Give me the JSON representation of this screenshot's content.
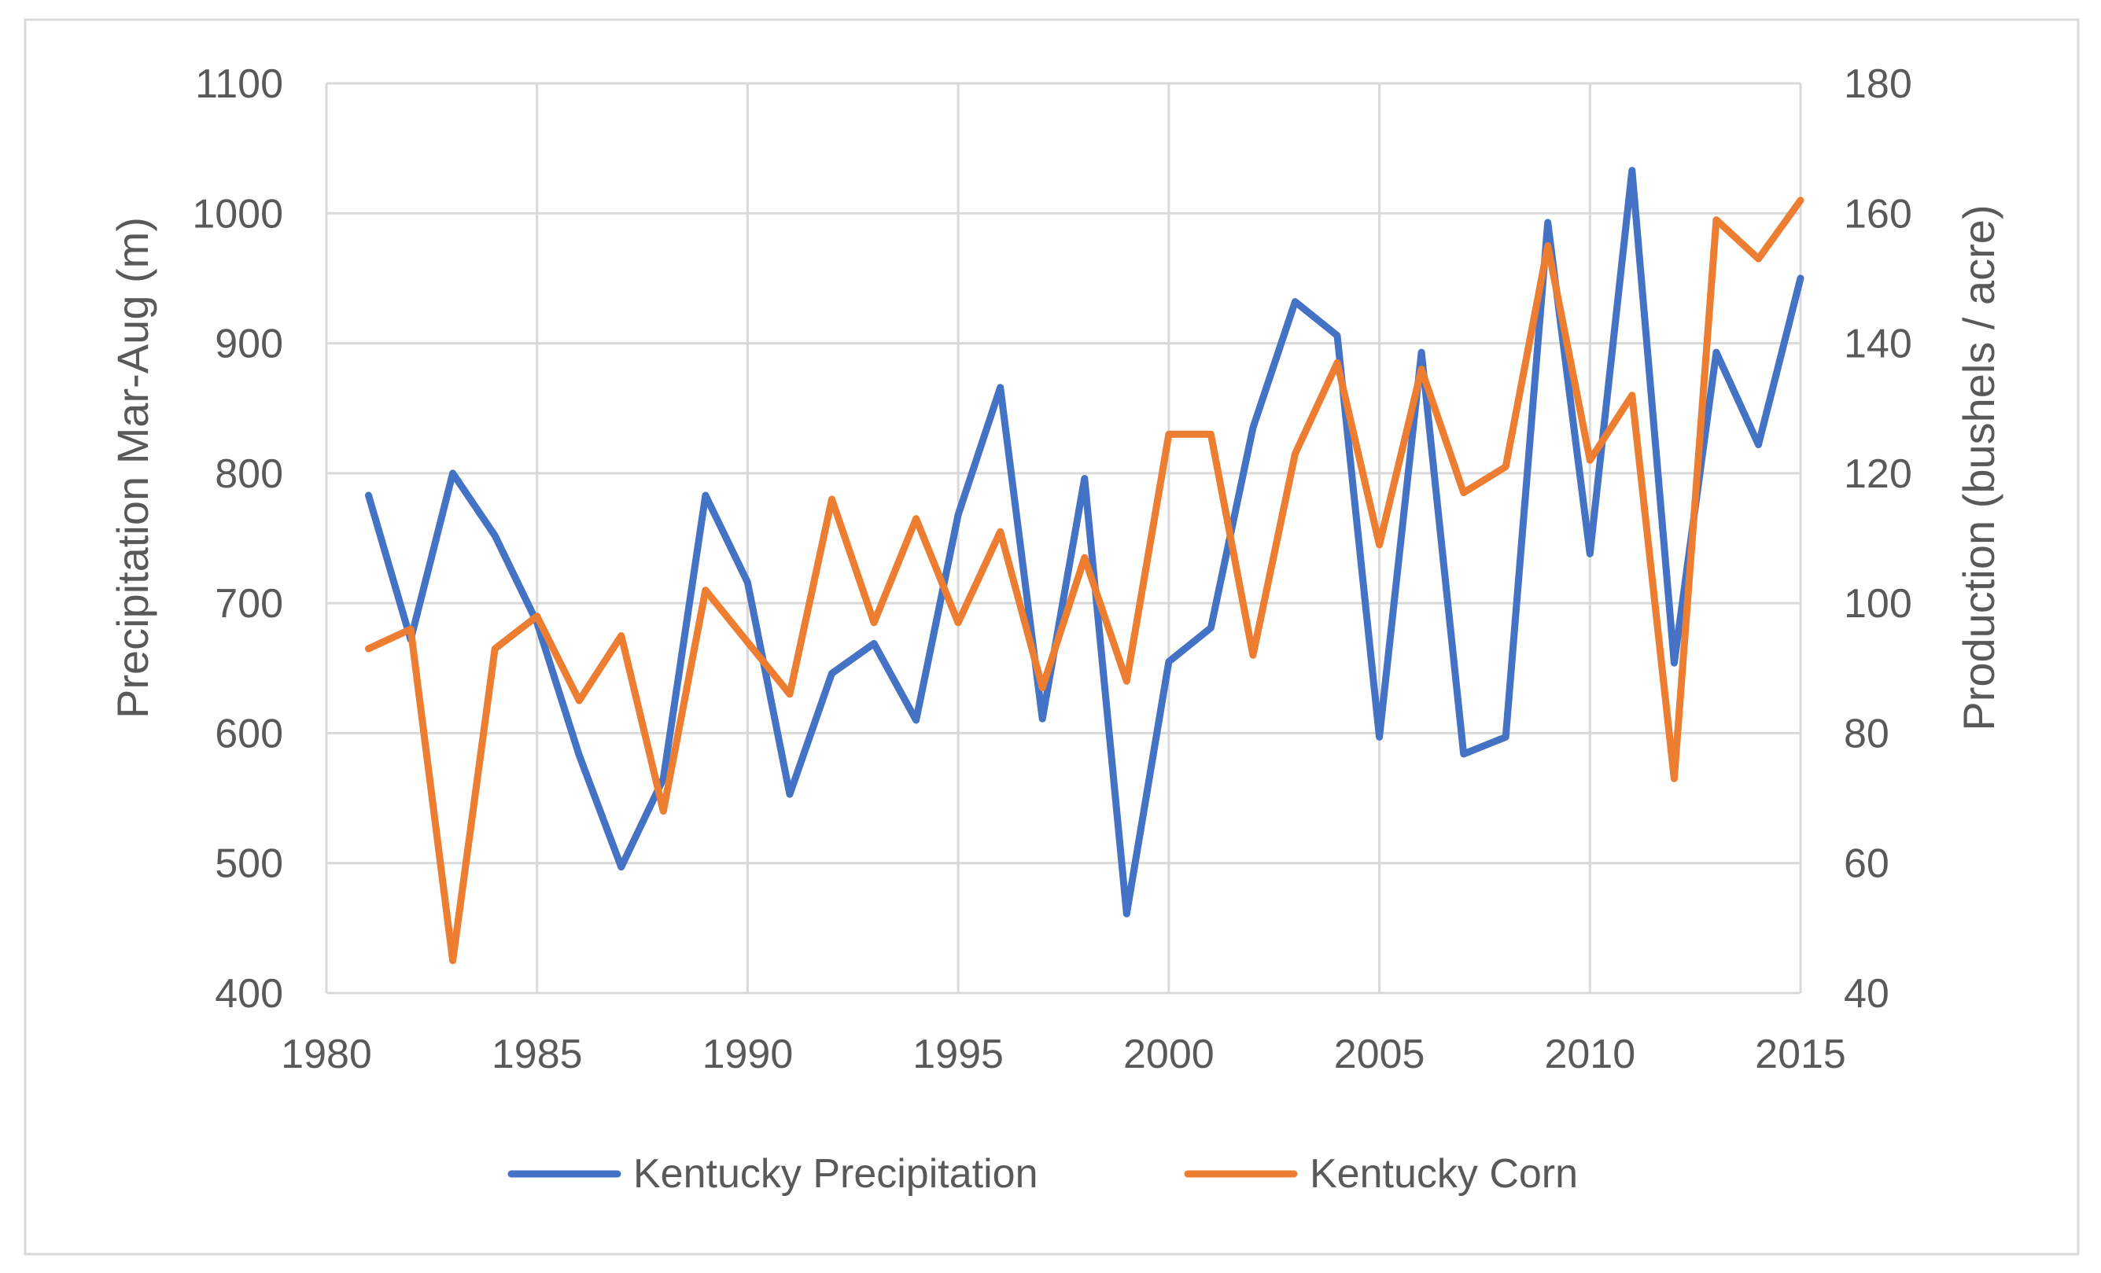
{
  "chart_data": {
    "type": "line",
    "title": "",
    "xlabel": "",
    "ylabel": "Precipitation  Mar-Aug (m)",
    "y2label": "Production  (bushels / acre)",
    "xlim": [
      1980,
      2015
    ],
    "ylim": [
      400,
      1100
    ],
    "y2lim": [
      40,
      180
    ],
    "x_ticks": [
      1980,
      1985,
      1990,
      1995,
      2000,
      2005,
      2010,
      2015
    ],
    "y_ticks": [
      400,
      500,
      600,
      700,
      800,
      900,
      1000,
      1100
    ],
    "y2_ticks": [
      40,
      60,
      80,
      100,
      120,
      140,
      160,
      180
    ],
    "grid": true,
    "legend_position": "bottom",
    "x": [
      1981,
      1982,
      1983,
      1984,
      1985,
      1986,
      1987,
      1988,
      1989,
      1990,
      1991,
      1992,
      1993,
      1994,
      1995,
      1996,
      1997,
      1998,
      1999,
      2000,
      2001,
      2002,
      2003,
      2004,
      2005,
      2006,
      2007,
      2008,
      2009,
      2010,
      2011,
      2012,
      2013,
      2014,
      2015
    ],
    "series": [
      {
        "name": "Kentucky Precipitation",
        "axis": "left",
        "color": "#4472C4",
        "values": [
          783,
          672,
          800,
          752,
          685,
          583,
          497,
          565,
          783,
          716,
          553,
          646,
          669,
          610,
          768,
          866,
          611,
          796,
          461,
          655,
          681,
          835,
          932,
          906,
          597,
          893,
          584,
          597,
          993,
          738,
          1033,
          654,
          893,
          822,
          950
        ]
      },
      {
        "name": "Kentucky Corn",
        "axis": "right",
        "color": "#ED7D31",
        "values": [
          93,
          96,
          45,
          93,
          98,
          85,
          95,
          68,
          102,
          94,
          86,
          116,
          97,
          113,
          97,
          111,
          87,
          107,
          88,
          126,
          126,
          92,
          123,
          137,
          109,
          136,
          117,
          121,
          155,
          122,
          132,
          73,
          159,
          153,
          162
        ]
      }
    ]
  }
}
